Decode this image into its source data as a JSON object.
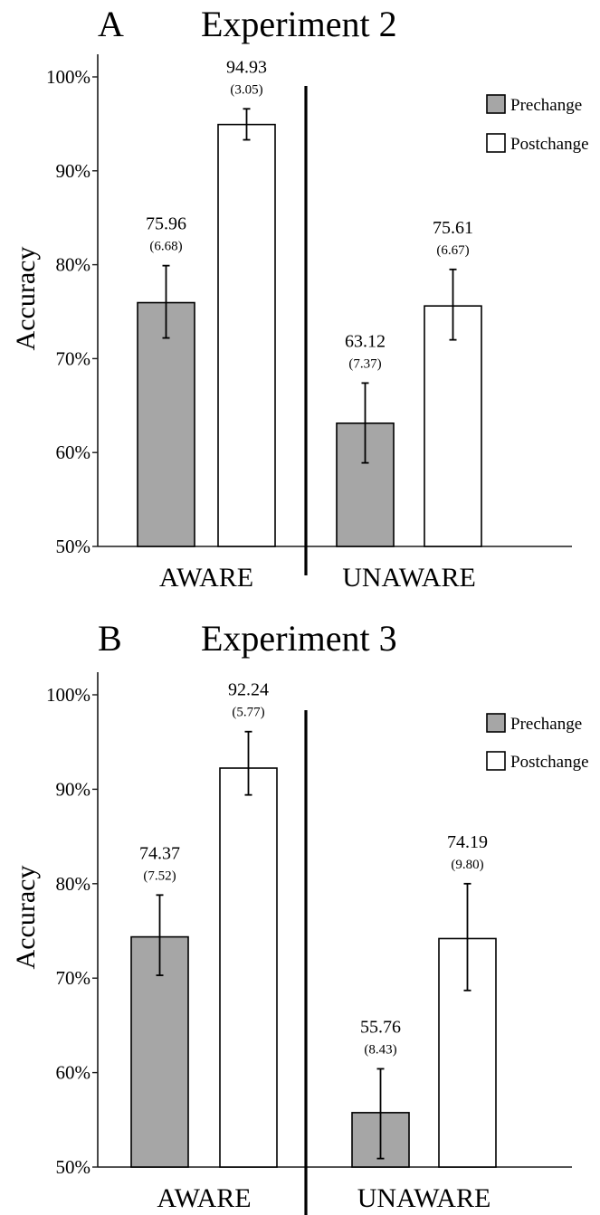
{
  "colors": {
    "prechange": "#a6a6a6",
    "postchange": "#ffffff",
    "axis": "#1a1a1a",
    "background": "#ffffff"
  },
  "chart_data": [
    {
      "type": "bar",
      "panel_letter": "A",
      "title": "Experiment 2",
      "ylabel": "Accuracy",
      "xlabel": "",
      "ylim": [
        50,
        100
      ],
      "yticks": [
        "50%",
        "60%",
        "70%",
        "80%",
        "90%",
        "100%"
      ],
      "ytick_values": [
        50,
        60,
        70,
        80,
        90,
        100
      ],
      "categories": [
        "AWARE",
        "UNAWARE"
      ],
      "legend_placement": "top-right",
      "grid": false,
      "series": [
        {
          "name": "Prechange",
          "values": [
            75.96,
            63.12
          ],
          "sd_labels": [
            "(6.68)",
            "(7.37)"
          ],
          "error_low": [
            72.2,
            58.9
          ],
          "error_high": [
            79.9,
            67.4
          ]
        },
        {
          "name": "Postchange",
          "values": [
            94.93,
            75.61
          ],
          "sd_labels": [
            "(3.05)",
            "(6.67)"
          ],
          "error_low": [
            93.3,
            72.0
          ],
          "error_high": [
            96.6,
            79.5
          ]
        }
      ],
      "value_labels": [
        [
          "75.96",
          "63.12"
        ],
        [
          "94.93",
          "75.61"
        ]
      ]
    },
    {
      "type": "bar",
      "panel_letter": "B",
      "title": "Experiment 3",
      "ylabel": "Accuracy",
      "xlabel": "",
      "ylim": [
        50,
        100
      ],
      "yticks": [
        "50%",
        "60%",
        "70%",
        "80%",
        "90%",
        "100%"
      ],
      "ytick_values": [
        50,
        60,
        70,
        80,
        90,
        100
      ],
      "categories": [
        "AWARE",
        "UNAWARE"
      ],
      "legend_placement": "top-right",
      "grid": false,
      "series": [
        {
          "name": "Prechange",
          "values": [
            74.37,
            55.76
          ],
          "sd_labels": [
            "(7.52)",
            "(8.43)"
          ],
          "error_low": [
            70.3,
            50.9
          ],
          "error_high": [
            78.8,
            60.4
          ]
        },
        {
          "name": "Postchange",
          "values": [
            92.24,
            74.19
          ],
          "sd_labels": [
            "(5.77)",
            "(9.80)"
          ],
          "error_low": [
            89.4,
            68.7
          ],
          "error_high": [
            96.1,
            80.0
          ]
        }
      ],
      "value_labels": [
        [
          "74.37",
          "55.76"
        ],
        [
          "92.24",
          "74.19"
        ]
      ]
    }
  ]
}
